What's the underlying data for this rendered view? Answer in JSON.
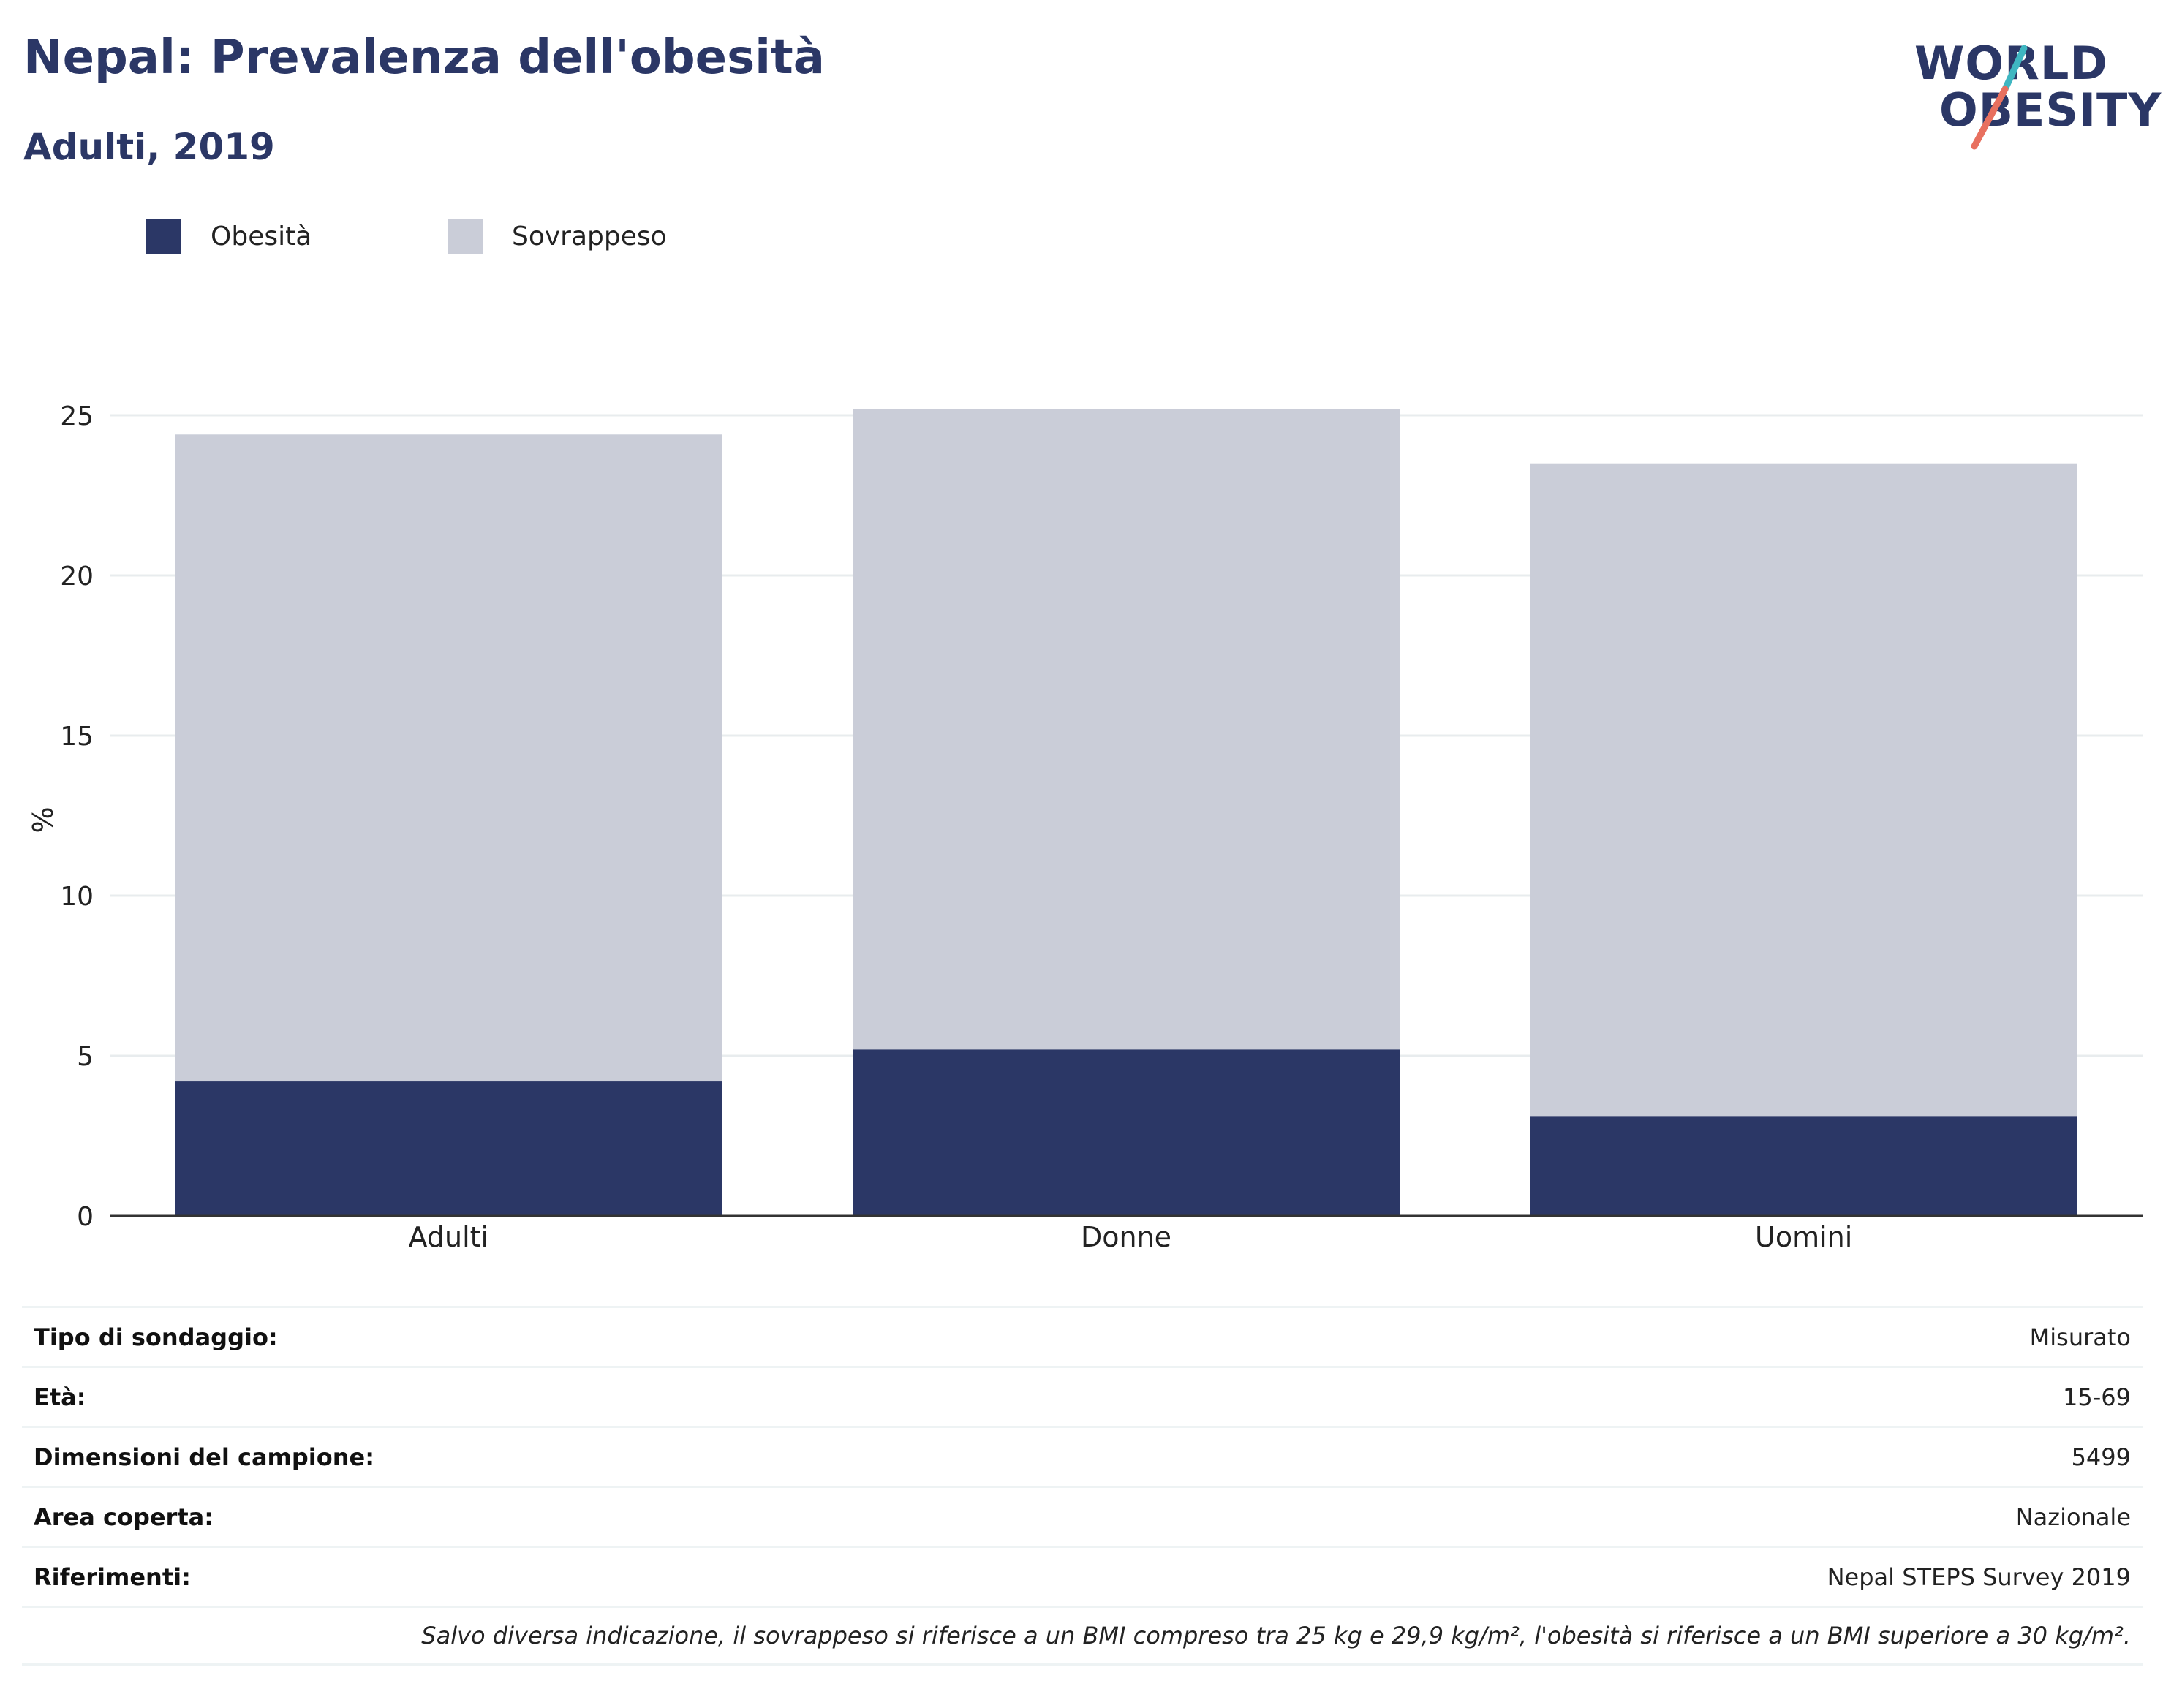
{
  "header": {
    "title": "Nepal: Prevalenza dell'obesità",
    "subtitle": "Adulti, 2019"
  },
  "logo": {
    "line1": "WORLD",
    "line2": "OBESITY",
    "accent_colors": [
      "#3fb6c1",
      "#e8705f"
    ]
  },
  "legend": [
    {
      "label": "Obesità",
      "color": "#2b3766"
    },
    {
      "label": "Sovrappeso",
      "color": "#cacdd8"
    }
  ],
  "chart_data": {
    "type": "bar",
    "stacked": true,
    "categories": [
      "Adulti",
      "Donne",
      "Uomini"
    ],
    "series": [
      {
        "name": "Obesità",
        "color": "#2b3766",
        "values": [
          4.2,
          5.2,
          3.1
        ]
      },
      {
        "name": "Sovrappeso",
        "color": "#cacdd8",
        "values": [
          20.2,
          20.0,
          20.4
        ]
      }
    ],
    "ylabel": "%",
    "ylim": [
      0,
      25
    ],
    "yticks": [
      "0",
      "5",
      "10",
      "15",
      "20",
      "25"
    ],
    "grid": true,
    "legend_position": "top-left"
  },
  "info": [
    {
      "key": "Tipo di sondaggio:",
      "value": "Misurato"
    },
    {
      "key": "Età:",
      "value": "15-69"
    },
    {
      "key": "Dimensioni del campione:",
      "value": "5499"
    },
    {
      "key": "Area coperta:",
      "value": "Nazionale"
    },
    {
      "key": "Riferimenti:",
      "value": "Nepal STEPS Survey 2019"
    }
  ],
  "note": "Salvo diversa indicazione, il sovrappeso si riferisce a un BMI compreso tra 25 kg e 29,9 kg/m², l'obesità si riferisce a un BMI superiore a 30 kg/m²."
}
